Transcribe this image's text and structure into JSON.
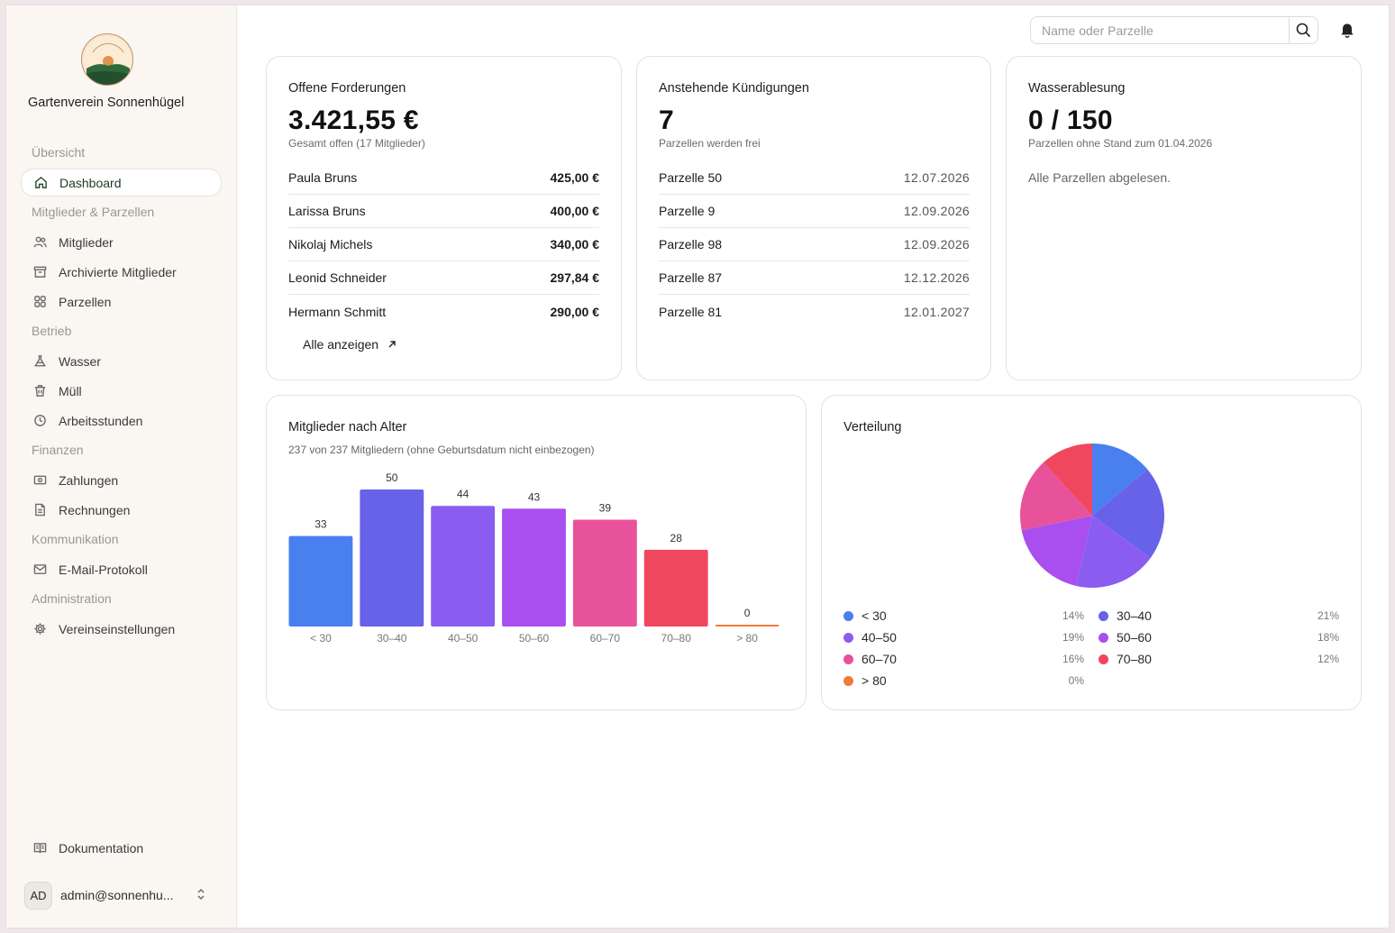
{
  "sidebar": {
    "org_name": "Gartenverein Sonnenhügel",
    "logo_text": "Gartenverein Sonnenhügel",
    "sections": {
      "overview": "Übersicht",
      "members": "Mitglieder & Parzellen",
      "operations": "Betrieb",
      "finance": "Finanzen",
      "communication": "Kommunikation",
      "administration": "Administration"
    },
    "items": {
      "dashboard": "Dashboard",
      "mitglieder": "Mitglieder",
      "archiviert": "Archivierte Mitglieder",
      "parzellen": "Parzellen",
      "wasser": "Wasser",
      "muell": "Müll",
      "arbeitsstunden": "Arbeitsstunden",
      "zahlungen": "Zahlungen",
      "rechnungen": "Rechnungen",
      "email": "E-Mail-Protokoll",
      "einstellungen": "Vereinseinstellungen",
      "dokumentation": "Dokumentation"
    },
    "user": {
      "initials": "AD",
      "email": "admin@sonnenhu..."
    }
  },
  "topbar": {
    "search_placeholder": "Name oder Parzelle"
  },
  "forderungen": {
    "title": "Offene Forderungen",
    "value": "3.421,55 €",
    "sub": "Gesamt offen (17 Mitglieder)",
    "rows": [
      {
        "name": "Paula Bruns",
        "amount": "425,00 €"
      },
      {
        "name": "Larissa Bruns",
        "amount": "400,00 €"
      },
      {
        "name": "Nikolaj Michels",
        "amount": "340,00 €"
      },
      {
        "name": "Leonid Schneider",
        "amount": "297,84 €"
      },
      {
        "name": "Hermann Schmitt",
        "amount": "290,00 €"
      }
    ],
    "link": "Alle anzeigen"
  },
  "kuendigungen": {
    "title": "Anstehende Kündigungen",
    "value": "7",
    "sub": "Parzellen werden frei",
    "rows": [
      {
        "name": "Parzelle 50",
        "date": "12.07.2026"
      },
      {
        "name": "Parzelle 9",
        "date": "12.09.2026"
      },
      {
        "name": "Parzelle 98",
        "date": "12.09.2026"
      },
      {
        "name": "Parzelle 87",
        "date": "12.12.2026"
      },
      {
        "name": "Parzelle 81",
        "date": "12.01.2027"
      }
    ]
  },
  "wasser": {
    "title": "Wasserablesung",
    "value": "0 / 150",
    "sub": "Parzellen ohne Stand zum 01.04.2026",
    "note": "Alle Parzellen abgelesen."
  },
  "age_chart": {
    "title": "Mitglieder nach Alter",
    "sub": "237 von 237 Mitgliedern (ohne Geburtsdatum nicht einbezogen)"
  },
  "pie_chart": {
    "title": "Verteilung"
  },
  "chart_data": [
    {
      "type": "bar",
      "title": "Mitglieder nach Alter",
      "categories": [
        "< 30",
        "30–40",
        "40–50",
        "50–60",
        "60–70",
        "70–80",
        "> 80"
      ],
      "values": [
        33,
        50,
        44,
        43,
        39,
        28,
        0
      ],
      "colors": [
        "#4a7ff0",
        "#6862e8",
        "#8b5cf0",
        "#a94ff0",
        "#e8529a",
        "#f0475f",
        "#f07a3a"
      ],
      "ylim": [
        0,
        50
      ],
      "grid": false
    },
    {
      "type": "pie",
      "title": "Verteilung",
      "categories": [
        "< 30",
        "30–40",
        "40–50",
        "50–60",
        "60–70",
        "70–80",
        "> 80"
      ],
      "values": [
        33,
        50,
        44,
        43,
        39,
        28,
        0
      ],
      "percent_labels": [
        "14%",
        "21%",
        "19%",
        "18%",
        "16%",
        "12%",
        "0%"
      ],
      "colors": [
        "#4a7ff0",
        "#6862e8",
        "#8b5cf0",
        "#a94ff0",
        "#e8529a",
        "#f0475f",
        "#f07a3a"
      ],
      "legend": "bottom"
    }
  ]
}
